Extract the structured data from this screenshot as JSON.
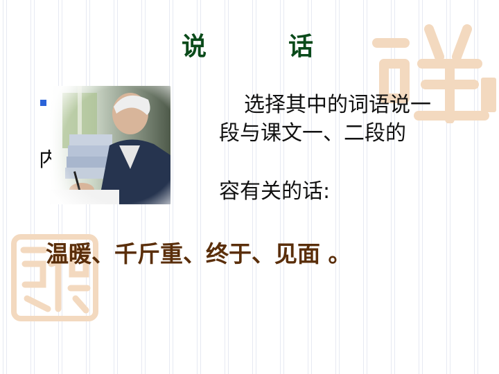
{
  "slide": {
    "title_part1": "说",
    "title_part2": "话",
    "instruction_line1": "选择其中的词语说一",
    "instruction_line2": "段与课文一、二段的",
    "instruction_line3_start": "内",
    "instruction_line3": "容有关的话:",
    "vocabulary": "温暖、千斤重、终于、见面 。"
  },
  "colors": {
    "title": "#0a4a1a",
    "vocabulary": "#5a2e0a",
    "bullet": "#2b63d8",
    "seal": "#f3d9bf"
  },
  "icons": {
    "bullet": "square-bullet-icon",
    "photo": "elderly-man-writing-photo",
    "seal_top": "calligraphy-seal-decoration",
    "seal_bottom": "calligraphy-seal-decoration"
  }
}
